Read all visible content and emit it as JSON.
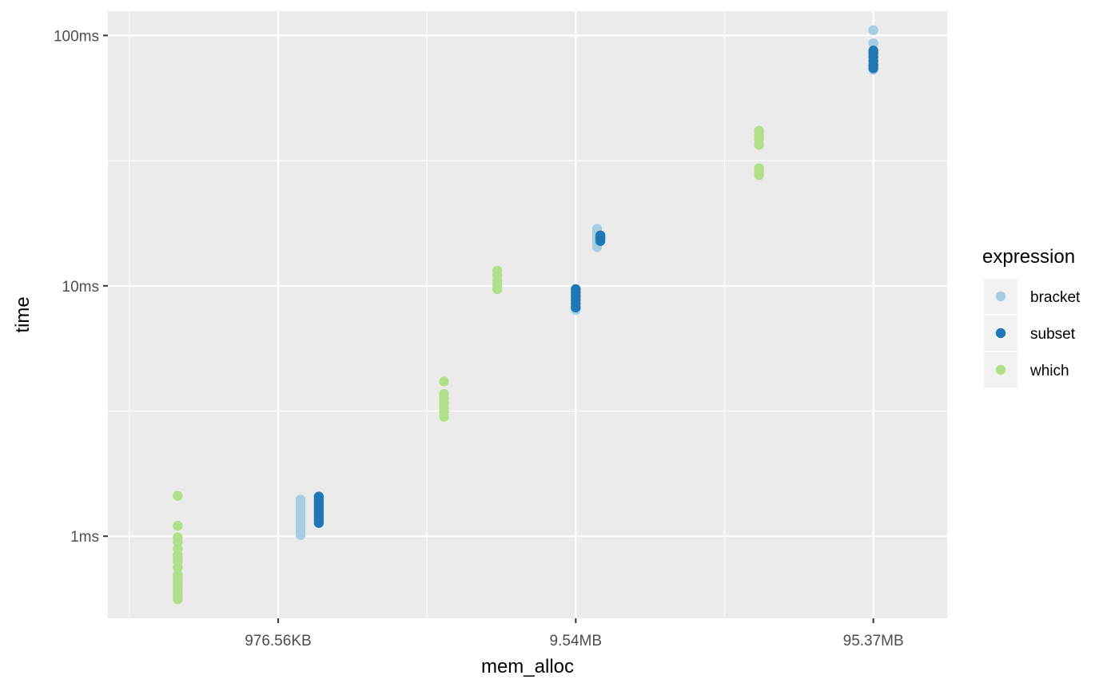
{
  "chart_data": {
    "type": "scatter",
    "xlabel": "mem_alloc",
    "ylabel": "time",
    "x_scale": "log10",
    "y_scale": "log10",
    "x_unit": "bytes",
    "y_unit": "seconds",
    "xlim": [
      268000,
      177000000
    ],
    "ylim": [
      0.00047,
      0.125
    ],
    "x_ticks": [
      {
        "value": 1000000,
        "label": "976.56KB"
      },
      {
        "value": 10000000,
        "label": "9.54MB"
      },
      {
        "value": 100000000,
        "label": "95.37MB"
      }
    ],
    "y_ticks": [
      {
        "value": 0.001,
        "label": "1ms"
      },
      {
        "value": 0.01,
        "label": "10ms"
      },
      {
        "value": 0.1,
        "label": "100ms"
      }
    ],
    "grid": true,
    "legend": {
      "title": "expression",
      "position": "right",
      "entries": [
        "bracket",
        "subset",
        "which"
      ]
    },
    "colors": {
      "bracket": "#a6cee3",
      "subset": "#1f78b4",
      "which": "#b2df8a"
    },
    "series": [
      {
        "name": "bracket",
        "points": [
          {
            "x": 1190000,
            "y": 0.00101
          },
          {
            "x": 1190000,
            "y": 0.00103
          },
          {
            "x": 1190000,
            "y": 0.00106
          },
          {
            "x": 1190000,
            "y": 0.00109
          },
          {
            "x": 1190000,
            "y": 0.00112
          },
          {
            "x": 1190000,
            "y": 0.00115
          },
          {
            "x": 1190000,
            "y": 0.00118
          },
          {
            "x": 1190000,
            "y": 0.00121
          },
          {
            "x": 1190000,
            "y": 0.00124
          },
          {
            "x": 1190000,
            "y": 0.00127
          },
          {
            "x": 1190000,
            "y": 0.0013
          },
          {
            "x": 1190000,
            "y": 0.00133
          },
          {
            "x": 1190000,
            "y": 0.00136
          },
          {
            "x": 1190000,
            "y": 0.0014
          },
          {
            "x": 10000000,
            "y": 0.008
          },
          {
            "x": 10000000,
            "y": 0.0083
          },
          {
            "x": 10000000,
            "y": 0.0086
          },
          {
            "x": 10000000,
            "y": 0.0089
          },
          {
            "x": 10000000,
            "y": 0.0092
          },
          {
            "x": 10000000,
            "y": 0.0095
          },
          {
            "x": 11800000,
            "y": 0.0143
          },
          {
            "x": 11800000,
            "y": 0.0147
          },
          {
            "x": 11800000,
            "y": 0.0151
          },
          {
            "x": 11800000,
            "y": 0.0155
          },
          {
            "x": 11800000,
            "y": 0.0159
          },
          {
            "x": 11800000,
            "y": 0.0163
          },
          {
            "x": 11800000,
            "y": 0.0169
          },
          {
            "x": 100000000,
            "y": 0.073
          },
          {
            "x": 100000000,
            "y": 0.076
          },
          {
            "x": 100000000,
            "y": 0.079
          },
          {
            "x": 100000000,
            "y": 0.083
          },
          {
            "x": 100000000,
            "y": 0.093
          },
          {
            "x": 100000000,
            "y": 0.105
          }
        ]
      },
      {
        "name": "subset",
        "points": [
          {
            "x": 1370000,
            "y": 0.00113
          },
          {
            "x": 1370000,
            "y": 0.00116
          },
          {
            "x": 1370000,
            "y": 0.00119
          },
          {
            "x": 1370000,
            "y": 0.00122
          },
          {
            "x": 1370000,
            "y": 0.00125
          },
          {
            "x": 1370000,
            "y": 0.00128
          },
          {
            "x": 1370000,
            "y": 0.00131
          },
          {
            "x": 1370000,
            "y": 0.00134
          },
          {
            "x": 1370000,
            "y": 0.00137
          },
          {
            "x": 1370000,
            "y": 0.0014
          },
          {
            "x": 1370000,
            "y": 0.00144
          },
          {
            "x": 10000000,
            "y": 0.0082
          },
          {
            "x": 10000000,
            "y": 0.0085
          },
          {
            "x": 10000000,
            "y": 0.0088
          },
          {
            "x": 10000000,
            "y": 0.0091
          },
          {
            "x": 10000000,
            "y": 0.0094
          },
          {
            "x": 10000000,
            "y": 0.0097
          },
          {
            "x": 12100000,
            "y": 0.0151
          },
          {
            "x": 12100000,
            "y": 0.0154
          },
          {
            "x": 12100000,
            "y": 0.0157
          },
          {
            "x": 12100000,
            "y": 0.0159
          },
          {
            "x": 100000000,
            "y": 0.074
          },
          {
            "x": 100000000,
            "y": 0.076
          },
          {
            "x": 100000000,
            "y": 0.079
          },
          {
            "x": 100000000,
            "y": 0.082
          },
          {
            "x": 100000000,
            "y": 0.085
          },
          {
            "x": 100000000,
            "y": 0.087
          }
        ]
      },
      {
        "name": "which",
        "points": [
          {
            "x": 460000,
            "y": 0.00056
          },
          {
            "x": 460000,
            "y": 0.00058
          },
          {
            "x": 460000,
            "y": 0.0006
          },
          {
            "x": 460000,
            "y": 0.00062
          },
          {
            "x": 460000,
            "y": 0.00064
          },
          {
            "x": 460000,
            "y": 0.00066
          },
          {
            "x": 460000,
            "y": 0.00068
          },
          {
            "x": 460000,
            "y": 0.0007
          },
          {
            "x": 460000,
            "y": 0.00075
          },
          {
            "x": 460000,
            "y": 0.00079
          },
          {
            "x": 460000,
            "y": 0.00082
          },
          {
            "x": 460000,
            "y": 0.00084
          },
          {
            "x": 460000,
            "y": 0.00089
          },
          {
            "x": 460000,
            "y": 0.00095
          },
          {
            "x": 460000,
            "y": 0.00099
          },
          {
            "x": 460000,
            "y": 0.0011
          },
          {
            "x": 460000,
            "y": 0.00145
          },
          {
            "x": 3610000,
            "y": 0.003
          },
          {
            "x": 3610000,
            "y": 0.00313
          },
          {
            "x": 3610000,
            "y": 0.00326
          },
          {
            "x": 3610000,
            "y": 0.0034
          },
          {
            "x": 3610000,
            "y": 0.00355
          },
          {
            "x": 3610000,
            "y": 0.0037
          },
          {
            "x": 3610000,
            "y": 0.00415
          },
          {
            "x": 5450000,
            "y": 0.0097
          },
          {
            "x": 5450000,
            "y": 0.0101
          },
          {
            "x": 5450000,
            "y": 0.0105
          },
          {
            "x": 5450000,
            "y": 0.011
          },
          {
            "x": 5450000,
            "y": 0.0115
          },
          {
            "x": 41300000,
            "y": 0.0277
          },
          {
            "x": 41300000,
            "y": 0.0286
          },
          {
            "x": 41300000,
            "y": 0.0295
          },
          {
            "x": 41300000,
            "y": 0.0366
          },
          {
            "x": 41300000,
            "y": 0.0385
          },
          {
            "x": 41300000,
            "y": 0.0401
          },
          {
            "x": 41300000,
            "y": 0.0416
          }
        ]
      }
    ]
  }
}
